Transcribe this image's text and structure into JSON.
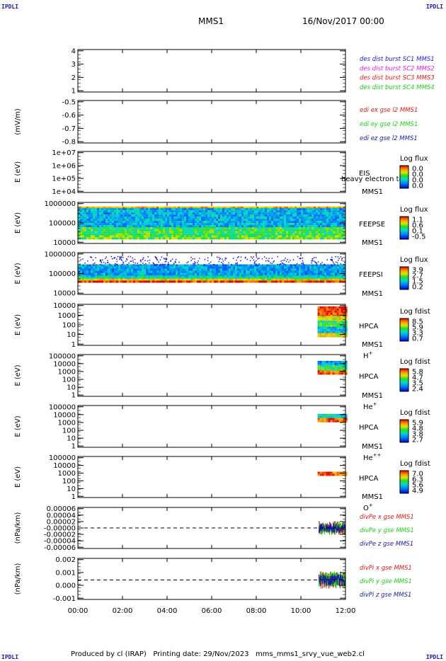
{
  "header": {
    "left_tag": "IPDLI",
    "right_tag": "IPDLI",
    "spacecraft": "MMS1",
    "date": "16/Nov/2017 00:00"
  },
  "footer": {
    "text": "Produced by cl (IRAP)   Printing date: 29/Nov/2023   mms_mms1_srvy_vue_web2.cl",
    "left_tag": "IPDLI",
    "right_tag": "IPDLI"
  },
  "colors": {
    "blue": "#1a1ad2",
    "magenta": "#e01ae0",
    "red": "#e01a1a",
    "green": "#1ad21a",
    "dark_blue": "#1a1aa6"
  },
  "chart_data": [
    {
      "type": "line",
      "title": "",
      "xlabel": "",
      "ylabel": "",
      "yticks": [
        "4",
        "3",
        "2",
        "1"
      ],
      "ylim": [
        0.6,
        4.4
      ],
      "legend": [
        {
          "name": "des dist burst SC1 MMS1",
          "color": "#1a1ad2"
        },
        {
          "name": "des dist burst SC2 MMS2",
          "color": "#e01ae0"
        },
        {
          "name": "des dist burst SC3 MMS3",
          "color": "#e01a1a"
        },
        {
          "name": "des dist burst SC4 MMS4",
          "color": "#1ad21a"
        }
      ],
      "series": []
    },
    {
      "type": "line",
      "ylabel": "(mV/m)",
      "yticks": [
        "-0.5",
        "-0.6",
        "-0.7",
        "-0.8"
      ],
      "ylim": [
        -0.8,
        -0.45
      ],
      "legend": [
        {
          "name": "edi ex gse l2 MMS1",
          "color": "#e01a1a"
        },
        {
          "name": "edi ey gse l2 MMS1",
          "color": "#1ad21a"
        },
        {
          "name": "edi ez gse l2 MMS1",
          "color": "#1a1aa6"
        }
      ],
      "series": []
    },
    {
      "type": "heatmap",
      "ylabel": "E (eV)",
      "yticks": [
        "1e+07",
        "1e+06",
        "1e+05",
        "1e+04"
      ],
      "ylim": [
        10000,
        10000000
      ],
      "label_lines": [
        "EIS",
        "MMS1"
      ],
      "overlay_text": "heavy electron to",
      "colorbar": {
        "title": "Log flux",
        "ticks": [
          "0.0",
          "0.0",
          "0.0",
          "0.0"
        ]
      },
      "coverage": []
    },
    {
      "type": "heatmap",
      "ylabel": "E (eV)",
      "yticks": [
        "1000000",
        "100000",
        "10000"
      ],
      "ylim": [
        10000,
        1000000
      ],
      "label_lines": [
        "FEEPSE",
        "MMS1"
      ],
      "colorbar": {
        "title": "Log flux",
        "ticks": [
          "1.1",
          "0.6",
          "0.1",
          "-0.5"
        ]
      },
      "coverage": [
        {
          "start_hour": 0,
          "end_hour": 12
        }
      ]
    },
    {
      "type": "heatmap",
      "ylabel": "E (eV)",
      "yticks": [
        "1000000",
        "100000",
        "10000"
      ],
      "ylim": [
        10000,
        1000000
      ],
      "label_lines": [
        "FEEPSI",
        "MMS1"
      ],
      "colorbar": {
        "title": "Log flux",
        "ticks": [
          "3.9",
          "2.7",
          "1.5",
          "0.2"
        ]
      },
      "coverage": [
        {
          "start_hour": 0,
          "end_hour": 12
        }
      ]
    },
    {
      "type": "heatmap",
      "ylabel": "E (eV)",
      "yticks": [
        "10000",
        "1000",
        "100",
        "10",
        "1"
      ],
      "ylim": [
        1,
        10000
      ],
      "label_lines": [
        "HPCA",
        "MMS1"
      ],
      "species": "H",
      "species_sup": "+",
      "colorbar": {
        "title": "Log fdist",
        "ticks": [
          "8.5",
          "5.9",
          "3.3",
          "0.7"
        ]
      },
      "coverage": [
        {
          "start_hour": 10.75,
          "end_hour": 12
        }
      ]
    },
    {
      "type": "heatmap",
      "ylabel": "E (eV)",
      "yticks": [
        "100000",
        "10000",
        "1000",
        "100",
        "10",
        "1"
      ],
      "ylim": [
        1,
        100000
      ],
      "label_lines": [
        "HPCA",
        "MMS1"
      ],
      "species": "He",
      "species_sup": "+",
      "colorbar": {
        "title": "Log fdist",
        "ticks": [
          "5.8",
          "4.7",
          "3.5",
          "2.4"
        ]
      },
      "coverage": [
        {
          "start_hour": 10.75,
          "end_hour": 12
        }
      ]
    },
    {
      "type": "heatmap",
      "ylabel": "E (eV)",
      "yticks": [
        "100000",
        "10000",
        "1000",
        "100",
        "10",
        "1"
      ],
      "ylim": [
        1,
        100000
      ],
      "label_lines": [
        "HPCA",
        "MMS1"
      ],
      "species": "He",
      "species_sup": "++",
      "colorbar": {
        "title": "Log fdist",
        "ticks": [
          "5.9",
          "4.8",
          "3.8",
          "2.7"
        ]
      },
      "coverage": [
        {
          "start_hour": 10.75,
          "end_hour": 12
        }
      ]
    },
    {
      "type": "heatmap",
      "ylabel": "E (eV)",
      "yticks": [
        "100000",
        "10000",
        "1000",
        "100",
        "10",
        "1"
      ],
      "ylim": [
        1,
        100000
      ],
      "label_lines": [
        "HPCA",
        "MMS1"
      ],
      "species": "O",
      "species_sup": "+",
      "colorbar": {
        "title": "Log fdist",
        "ticks": [
          "7.0",
          "6.3",
          "5.6",
          "4.9"
        ]
      },
      "coverage": [
        {
          "start_hour": 10.75,
          "end_hour": 12
        }
      ]
    },
    {
      "type": "line",
      "ylabel": "(nPa/km)",
      "yticks": [
        "0.00006",
        "0.00004",
        "0.00002",
        "-0.00000",
        "-0.00002",
        "-0.00004",
        "-0.00006"
      ],
      "ylim": [
        -6e-05,
        6e-05
      ],
      "zero_line": true,
      "legend": [
        {
          "name": "divPe x gse MMS1",
          "color": "#e01a1a"
        },
        {
          "name": "divPe y gse MMS1",
          "color": "#1ad21a"
        },
        {
          "name": "divPe z gse MMS1",
          "color": "#1a1aa6"
        }
      ],
      "active_window": {
        "start_hour": 10.8,
        "end_hour": 12,
        "amplitude": 2e-05
      }
    },
    {
      "type": "line",
      "ylabel": "(nPa/km)",
      "yticks": [
        "0.002",
        "0.001",
        "0.000",
        "-0.001"
      ],
      "ylim": [
        -0.0018,
        0.002
      ],
      "zero_line": true,
      "legend": [
        {
          "name": "divPi x gse MMS1",
          "color": "#e01a1a"
        },
        {
          "name": "divPi y gse MMS1",
          "color": "#1ad21a"
        },
        {
          "name": "divPi z gse MMS1",
          "color": "#1a1aa6"
        }
      ],
      "active_window": {
        "start_hour": 10.8,
        "end_hour": 12,
        "amplitude": 0.0008
      }
    }
  ],
  "x_axis": {
    "range_hours": [
      0,
      12
    ],
    "tick_labels": [
      "00:00",
      "02:00",
      "04:00",
      "06:00",
      "08:00",
      "10:00",
      "12:00"
    ]
  }
}
